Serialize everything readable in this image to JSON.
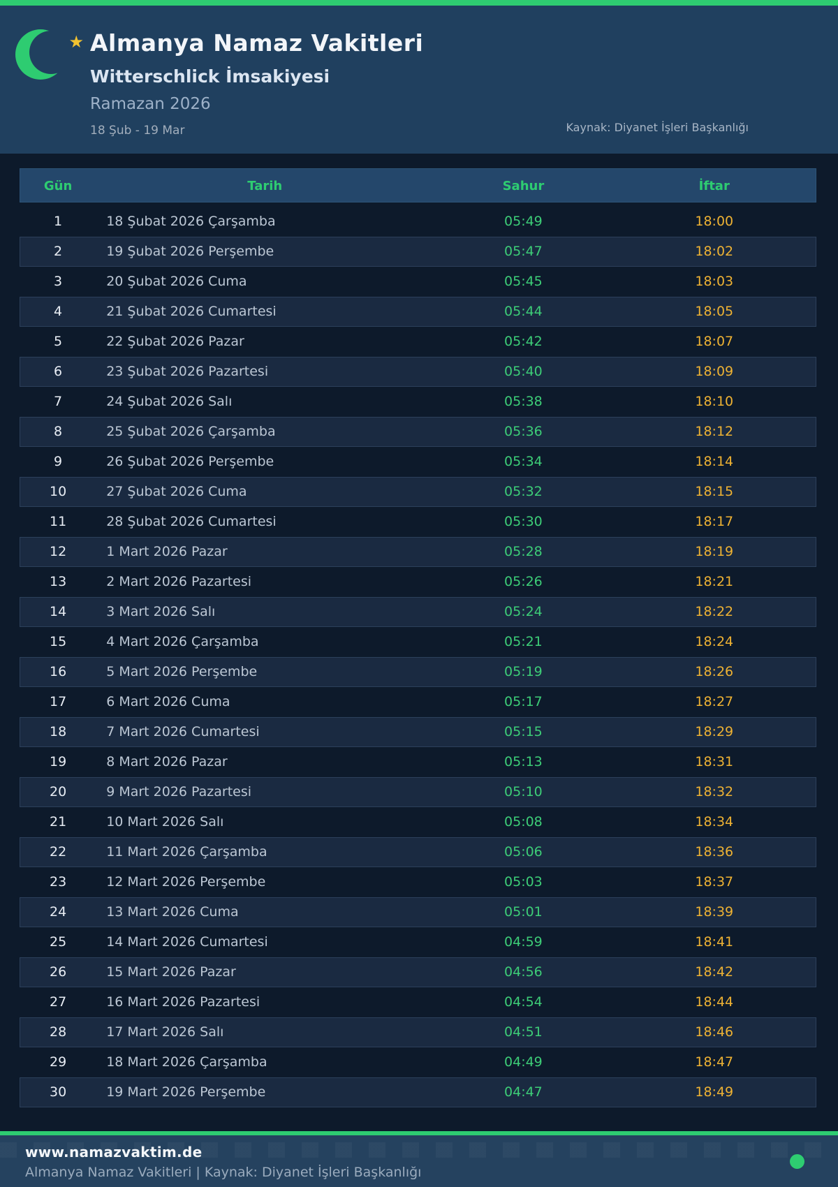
{
  "colors": {
    "accent_green": "#2ecc71",
    "sahur_green": "#3dcd77",
    "iftar_gold": "#eeb233",
    "header_bg": "#20405f",
    "page_bg": "#0d1a2b",
    "table_header_bg": "#24476b",
    "footer_bg": "#25425f"
  },
  "header": {
    "title": "Almanya Namaz Vakitleri",
    "subtitle": "Witterschlick İmsakiyesi",
    "season": "Ramazan 2026",
    "date_range": "18 Şub - 19 Mar",
    "source": "Kaynak: Diyanet İşleri Başkanlığı",
    "moon_icon": "crescent-moon",
    "star_icon": "star",
    "star_glyph": "★"
  },
  "table": {
    "columns": [
      "Gün",
      "Tarih",
      "Sahur",
      "İftar"
    ],
    "rows": [
      {
        "day": "1",
        "date": "18 Şubat 2026 Çarşamba",
        "sahur": "05:49",
        "iftar": "18:00"
      },
      {
        "day": "2",
        "date": "19 Şubat 2026 Perşembe",
        "sahur": "05:47",
        "iftar": "18:02"
      },
      {
        "day": "3",
        "date": "20 Şubat 2026 Cuma",
        "sahur": "05:45",
        "iftar": "18:03"
      },
      {
        "day": "4",
        "date": "21 Şubat 2026 Cumartesi",
        "sahur": "05:44",
        "iftar": "18:05"
      },
      {
        "day": "5",
        "date": "22 Şubat 2026 Pazar",
        "sahur": "05:42",
        "iftar": "18:07"
      },
      {
        "day": "6",
        "date": "23 Şubat 2026 Pazartesi",
        "sahur": "05:40",
        "iftar": "18:09"
      },
      {
        "day": "7",
        "date": "24 Şubat 2026 Salı",
        "sahur": "05:38",
        "iftar": "18:10"
      },
      {
        "day": "8",
        "date": "25 Şubat 2026 Çarşamba",
        "sahur": "05:36",
        "iftar": "18:12"
      },
      {
        "day": "9",
        "date": "26 Şubat 2026 Perşembe",
        "sahur": "05:34",
        "iftar": "18:14"
      },
      {
        "day": "10",
        "date": "27 Şubat 2026 Cuma",
        "sahur": "05:32",
        "iftar": "18:15"
      },
      {
        "day": "11",
        "date": "28 Şubat 2026 Cumartesi",
        "sahur": "05:30",
        "iftar": "18:17"
      },
      {
        "day": "12",
        "date": "1 Mart 2026 Pazar",
        "sahur": "05:28",
        "iftar": "18:19"
      },
      {
        "day": "13",
        "date": "2 Mart 2026 Pazartesi",
        "sahur": "05:26",
        "iftar": "18:21"
      },
      {
        "day": "14",
        "date": "3 Mart 2026 Salı",
        "sahur": "05:24",
        "iftar": "18:22"
      },
      {
        "day": "15",
        "date": "4 Mart 2026 Çarşamba",
        "sahur": "05:21",
        "iftar": "18:24"
      },
      {
        "day": "16",
        "date": "5 Mart 2026 Perşembe",
        "sahur": "05:19",
        "iftar": "18:26"
      },
      {
        "day": "17",
        "date": "6 Mart 2026 Cuma",
        "sahur": "05:17",
        "iftar": "18:27"
      },
      {
        "day": "18",
        "date": "7 Mart 2026 Cumartesi",
        "sahur": "05:15",
        "iftar": "18:29"
      },
      {
        "day": "19",
        "date": "8 Mart 2026 Pazar",
        "sahur": "05:13",
        "iftar": "18:31"
      },
      {
        "day": "20",
        "date": "9 Mart 2026 Pazartesi",
        "sahur": "05:10",
        "iftar": "18:32"
      },
      {
        "day": "21",
        "date": "10 Mart 2026 Salı",
        "sahur": "05:08",
        "iftar": "18:34"
      },
      {
        "day": "22",
        "date": "11 Mart 2026 Çarşamba",
        "sahur": "05:06",
        "iftar": "18:36"
      },
      {
        "day": "23",
        "date": "12 Mart 2026 Perşembe",
        "sahur": "05:03",
        "iftar": "18:37"
      },
      {
        "day": "24",
        "date": "13 Mart 2026 Cuma",
        "sahur": "05:01",
        "iftar": "18:39"
      },
      {
        "day": "25",
        "date": "14 Mart 2026 Cumartesi",
        "sahur": "04:59",
        "iftar": "18:41"
      },
      {
        "day": "26",
        "date": "15 Mart 2026 Pazar",
        "sahur": "04:56",
        "iftar": "18:42"
      },
      {
        "day": "27",
        "date": "16 Mart 2026 Pazartesi",
        "sahur": "04:54",
        "iftar": "18:44"
      },
      {
        "day": "28",
        "date": "17 Mart 2026 Salı",
        "sahur": "04:51",
        "iftar": "18:46"
      },
      {
        "day": "29",
        "date": "18 Mart 2026 Çarşamba",
        "sahur": "04:49",
        "iftar": "18:47"
      },
      {
        "day": "30",
        "date": "19 Mart 2026 Perşembe",
        "sahur": "04:47",
        "iftar": "18:49"
      }
    ]
  },
  "footer": {
    "website": "www.namazvaktim.de",
    "tagline": "Almanya Namaz Vakitleri | Kaynak: Diyanet İşleri Başkanlığı",
    "status_dot": "green-dot"
  }
}
